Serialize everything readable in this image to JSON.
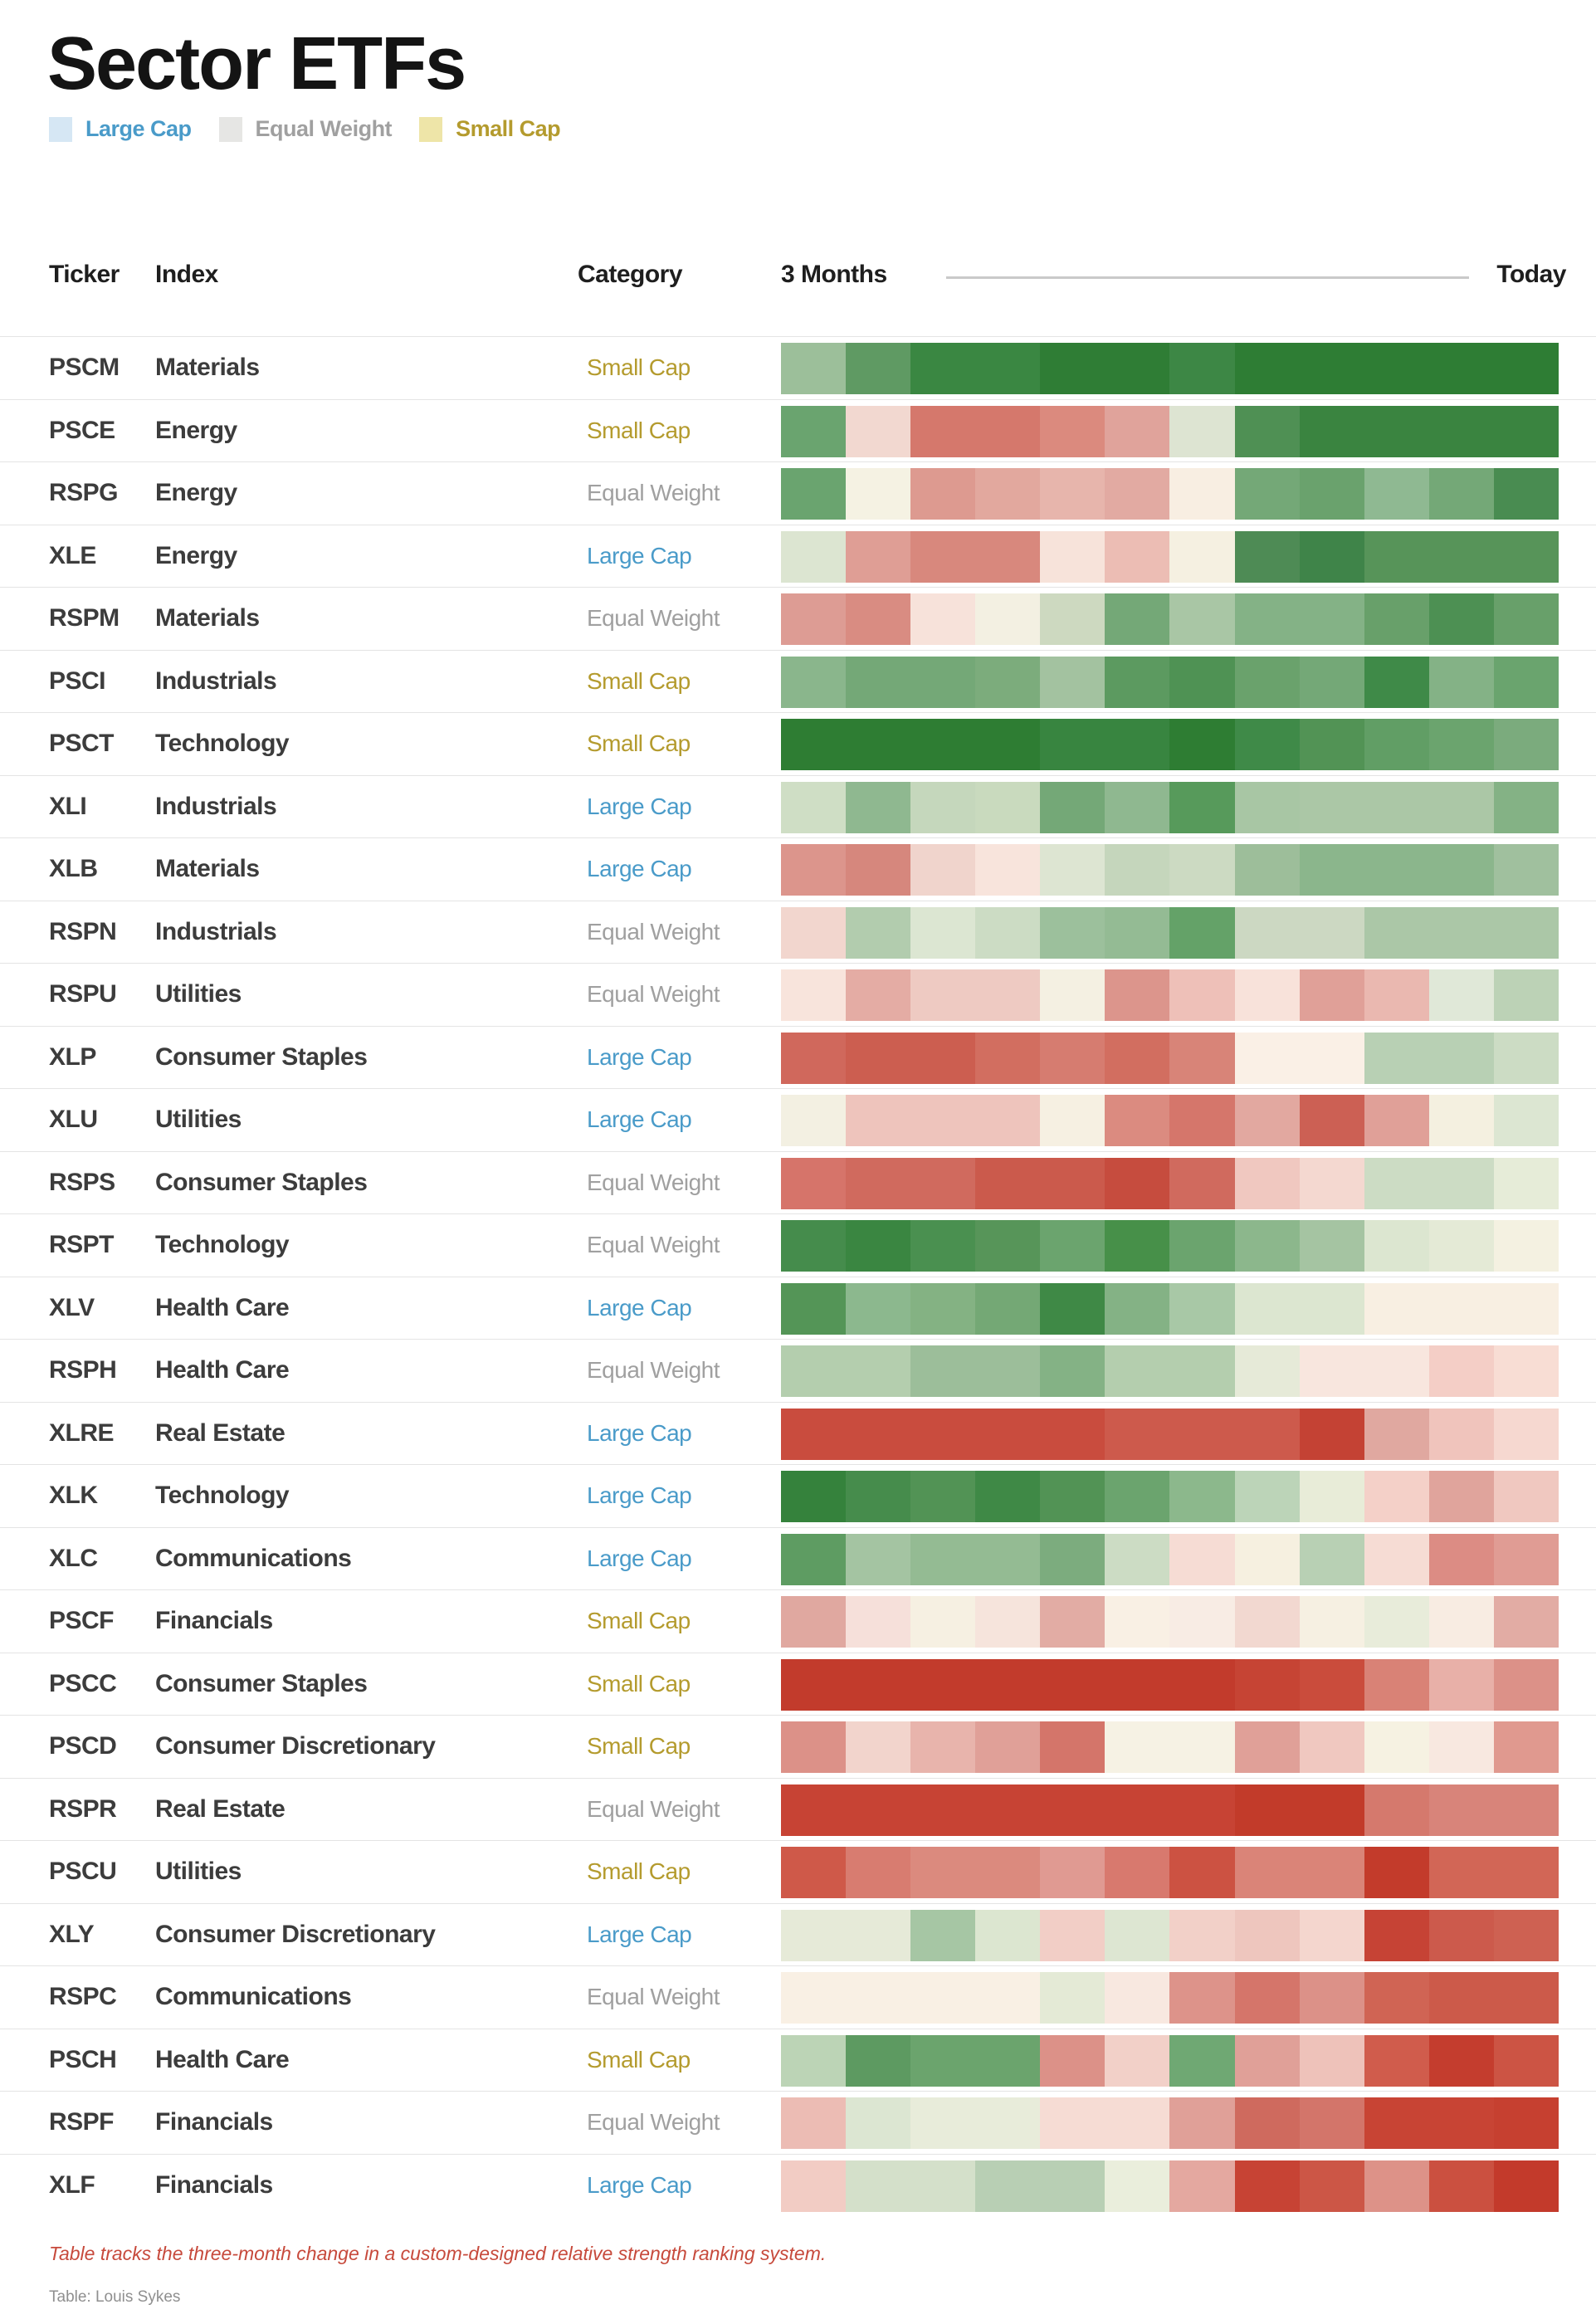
{
  "title": "Sector ETFs",
  "legend": [
    {
      "label": "Large Cap",
      "swatch_color": "#d6e7f4",
      "label_color": "#4a9bc9"
    },
    {
      "label": "Equal Weight",
      "swatch_color": "#e6e6e4",
      "label_color": "#a0a0a0"
    },
    {
      "label": "Small Cap",
      "swatch_color": "#eee5a8",
      "label_color": "#b49b2e"
    }
  ],
  "category_colors": {
    "Large Cap": "#4a9bc9",
    "Equal Weight": "#a0a0a0",
    "Small Cap": "#b49b2e"
  },
  "table": {
    "headers": {
      "ticker": "Ticker",
      "index": "Index",
      "category": "Category",
      "range_start": "3 Months",
      "range_end": "Today"
    }
  },
  "chart_data": {
    "type": "heatmap",
    "title": "Sector ETFs",
    "x_axis": {
      "start_label": "3 Months",
      "end_label": "Today",
      "n_cols": 12
    },
    "rows": [
      {
        "ticker": "PSCM",
        "index": "Materials",
        "category": "Small Cap",
        "cells": [
          "#9cbf9a",
          "#5f9a63",
          "#3a8742",
          "#3a8742",
          "#2f7d35",
          "#2f7d35",
          "#3d8745",
          "#2e7d34",
          "#2e7d34",
          "#2e7d34",
          "#2e7d34",
          "#2e7d34"
        ]
      },
      {
        "ticker": "PSCE",
        "index": "Energy",
        "category": "Small Cap",
        "cells": [
          "#6aa46f",
          "#f2d8d0",
          "#d5786c",
          "#d5786c",
          "#db8a7e",
          "#e0a39b",
          "#dde4d2",
          "#4f9054",
          "#3a8440",
          "#3a8440",
          "#3a8440",
          "#3a8440"
        ]
      },
      {
        "ticker": "RSPG",
        "index": "Energy",
        "category": "Equal Weight",
        "cells": [
          "#6aa46f",
          "#f5f2e3",
          "#dd9a90",
          "#e2a89e",
          "#e7b5ac",
          "#e2aaa2",
          "#f8eee2",
          "#74a877",
          "#6aa26d",
          "#8fb992",
          "#74a877",
          "#498c51"
        ]
      },
      {
        "ticker": "XLE",
        "index": "Energy",
        "category": "Large Cap",
        "cells": [
          "#dce5d1",
          "#df9e95",
          "#d8887d",
          "#d8887d",
          "#f7e3da",
          "#ecbdb4",
          "#f5f0e1",
          "#4e8b55",
          "#3f8449",
          "#579459",
          "#579459",
          "#579459"
        ]
      },
      {
        "ticker": "RSPM",
        "index": "Materials",
        "category": "Equal Weight",
        "cells": [
          "#dd9c94",
          "#d98c82",
          "#f7e2da",
          "#f3f0e2",
          "#cdd9c0",
          "#74a877",
          "#a9c6a5",
          "#84b286",
          "#84b286",
          "#68a06a",
          "#4d9053",
          "#68a06a"
        ]
      },
      {
        "ticker": "PSCI",
        "index": "Industrials",
        "category": "Small Cap",
        "cells": [
          "#8ab68c",
          "#74a877",
          "#74a877",
          "#7cac7c",
          "#a3c2a0",
          "#5c9a60",
          "#4f9254",
          "#6aa26c",
          "#74a877",
          "#3f8a48",
          "#84b286",
          "#6aa46e"
        ]
      },
      {
        "ticker": "PSCT",
        "index": "Technology",
        "category": "Small Cap",
        "cells": [
          "#2e7d33",
          "#2e7d33",
          "#2e7d33",
          "#2e7d33",
          "#388540",
          "#388540",
          "#2e7d33",
          "#3f8a48",
          "#529355",
          "#619e65",
          "#6ba46e",
          "#7bab7d"
        ]
      },
      {
        "ticker": "XLI",
        "index": "Industrials",
        "category": "Large Cap",
        "cells": [
          "#cfdec5",
          "#8fb890",
          "#c5d7bc",
          "#c9dabe",
          "#74a877",
          "#8fb890",
          "#579a5b",
          "#a8c6a4",
          "#abc7a6",
          "#abc7a6",
          "#abc7a6",
          "#84b285"
        ]
      },
      {
        "ticker": "XLB",
        "index": "Materials",
        "category": "Large Cap",
        "cells": [
          "#dc958c",
          "#d6877d",
          "#f0d4cc",
          "#f8e4dc",
          "#dde5d2",
          "#c5d6bc",
          "#ccdac2",
          "#9dbe9a",
          "#8bb68c",
          "#8bb68c",
          "#8bb68c",
          "#a0c09e"
        ]
      },
      {
        "ticker": "RSPN",
        "index": "Industrials",
        "category": "Equal Weight",
        "cells": [
          "#f2d6ce",
          "#b2ccae",
          "#dce6d2",
          "#ccdcc4",
          "#9cc09c",
          "#94bb94",
          "#64a268",
          "#ccd8c2",
          "#ccd8c2",
          "#abc7a7",
          "#abc7a7",
          "#abc7a7"
        ]
      },
      {
        "ticker": "RSPU",
        "index": "Utilities",
        "category": "Equal Weight",
        "cells": [
          "#f8e4dc",
          "#e4aca4",
          "#eecac2",
          "#eecac2",
          "#f4f0e2",
          "#dc958c",
          "#eec0b8",
          "#f8e2da",
          "#e0a098",
          "#eab8b0",
          "#e0e8d8",
          "#bcd2b6"
        ]
      },
      {
        "ticker": "XLP",
        "index": "Consumer Staples",
        "category": "Large Cap",
        "cells": [
          "#d0685c",
          "#cc5e50",
          "#cc5e50",
          "#d26e60",
          "#d67c70",
          "#d26e60",
          "#d88478",
          "#faf0e6",
          "#faf0e6",
          "#b8d0b4",
          "#b8d0b4",
          "#ccdcc4"
        ]
      },
      {
        "ticker": "XLU",
        "index": "Utilities",
        "category": "Large Cap",
        "cells": [
          "#f3f0e2",
          "#eec4bc",
          "#eec4bc",
          "#eec4bc",
          "#f6f0e2",
          "#db8b80",
          "#d5766b",
          "#e2a8a0",
          "#cc6054",
          "#e0a098",
          "#f4f0e0",
          "#dce6d2"
        ]
      },
      {
        "ticker": "RSPS",
        "index": "Consumer Staples",
        "category": "Equal Weight",
        "cells": [
          "#d6746a",
          "#d06a5e",
          "#d06a5e",
          "#cb5a4c",
          "#cb5a4c",
          "#c64c3e",
          "#d06a5e",
          "#f0c8c0",
          "#f4d8d0",
          "#ccdcc4",
          "#ccdcc4",
          "#e6ecd8"
        ]
      },
      {
        "ticker": "RSPT",
        "index": "Technology",
        "category": "Equal Weight",
        "cells": [
          "#458c4c",
          "#3a8641",
          "#4a9050",
          "#579559",
          "#6ba46e",
          "#479049",
          "#6ba46e",
          "#8cb78c",
          "#a5c4a2",
          "#dce6d0",
          "#e4ead6",
          "#f4f1e1"
        ]
      },
      {
        "ticker": "XLV",
        "index": "Health Care",
        "category": "Large Cap",
        "cells": [
          "#549557",
          "#8cb88e",
          "#84b283",
          "#74a875",
          "#3f8946",
          "#84b285",
          "#a8c8a6",
          "#dce6d0",
          "#dce6d0",
          "#f8efe2",
          "#f8efe2",
          "#f8efe2"
        ]
      },
      {
        "ticker": "RSPH",
        "index": "Health Care",
        "category": "Equal Weight",
        "cells": [
          "#b4ceae",
          "#b4ceae",
          "#9cbe9a",
          "#9cbe9a",
          "#84b285",
          "#b4ceae",
          "#b4ceae",
          "#e6ead8",
          "#f8e6de",
          "#f8e6de",
          "#f4cec6",
          "#f8ddd4"
        ]
      },
      {
        "ticker": "XLRE",
        "index": "Real Estate",
        "category": "Large Cap",
        "cells": [
          "#c94c3e",
          "#c94c3e",
          "#c94c3e",
          "#c94c3e",
          "#c94c3e",
          "#cd5a4c",
          "#cd5a4c",
          "#cd5a4c",
          "#c44234",
          "#e0a8a0",
          "#f0c4bc",
          "#f6d8d0"
        ]
      },
      {
        "ticker": "XLK",
        "index": "Technology",
        "category": "Large Cap",
        "cells": [
          "#35823c",
          "#468c4c",
          "#529355",
          "#3f8946",
          "#529355",
          "#6ba46e",
          "#8cb88c",
          "#bcd4b8",
          "#e8ecd8",
          "#f4d0c8",
          "#e0a49c",
          "#f0c8c0"
        ]
      },
      {
        "ticker": "XLC",
        "index": "Communications",
        "category": "Large Cap",
        "cells": [
          "#5e9c62",
          "#a4c4a2",
          "#94bb93",
          "#94bb93",
          "#7cac7e",
          "#ccdcc4",
          "#f6dcd4",
          "#f6f0e0",
          "#b8d0b4",
          "#f6dcd4",
          "#dc8c84",
          "#e09c94"
        ]
      },
      {
        "ticker": "PSCF",
        "index": "Financials",
        "category": "Small Cap",
        "cells": [
          "#e0a8a0",
          "#f6e0da",
          "#f6f0e2",
          "#f6e4dc",
          "#e2aca4",
          "#f9f0e4",
          "#f8ece4",
          "#f2d8d0",
          "#f6f0e2",
          "#e8ecda",
          "#f8ece2",
          "#e2aca4"
        ]
      },
      {
        "ticker": "PSCC",
        "index": "Consumer Staples",
        "category": "Small Cap",
        "cells": [
          "#c23b2c",
          "#c23b2c",
          "#c23b2c",
          "#c23b2c",
          "#c23b2c",
          "#c23b2c",
          "#c23b2c",
          "#c64434",
          "#ca4c3c",
          "#d98276",
          "#e8b0a8",
          "#dc9188"
        ]
      },
      {
        "ticker": "PSCD",
        "index": "Consumer Discretionary",
        "category": "Small Cap",
        "cells": [
          "#dc9188",
          "#f2d4cc",
          "#e8b4ac",
          "#e0a098",
          "#d4756a",
          "#f6f2e4",
          "#f6f2e4",
          "#e0a098",
          "#f0c8c0",
          "#f6f2e2",
          "#f8e8e0",
          "#e0998f"
        ]
      },
      {
        "ticker": "RSPR",
        "index": "Real Estate",
        "category": "Equal Weight",
        "cells": [
          "#c74334",
          "#c74334",
          "#c74334",
          "#c74334",
          "#c74334",
          "#c74334",
          "#c74334",
          "#c23b2a",
          "#c23b2a",
          "#d5796d",
          "#d8847a",
          "#d8847a"
        ]
      },
      {
        "ticker": "PSCU",
        "index": "Utilities",
        "category": "Small Cap",
        "cells": [
          "#cf5949",
          "#d87c70",
          "#db8a7e",
          "#db8a7e",
          "#e09a92",
          "#d8796e",
          "#cc5242",
          "#da8478",
          "#da8478",
          "#c33b2b",
          "#d26656",
          "#d26656"
        ]
      },
      {
        "ticker": "XLY",
        "index": "Consumer Discretionary",
        "category": "Large Cap",
        "cells": [
          "#e6ead8",
          "#e6ead8",
          "#a6c6a4",
          "#dce6d0",
          "#f2cec6",
          "#dde6d2",
          "#f2d0c8",
          "#eec6be",
          "#f4d6ce",
          "#c64335",
          "#cc5a4c",
          "#ce6152"
        ]
      },
      {
        "ticker": "RSPC",
        "index": "Communications",
        "category": "Equal Weight",
        "cells": [
          "#f9f0e4",
          "#f9f0e4",
          "#f9f0e4",
          "#f9f0e4",
          "#e4ead6",
          "#f8e8e0",
          "#dd938a",
          "#d5756a",
          "#dc9188",
          "#d06454",
          "#cc5a4a",
          "#cc5a4a"
        ]
      },
      {
        "ticker": "PSCH",
        "index": "Health Care",
        "category": "Small Cap",
        "cells": [
          "#bcd4b6",
          "#5d9a61",
          "#6ba46d",
          "#6ba46d",
          "#dc9188",
          "#f2d0c8",
          "#6fa873",
          "#e0a098",
          "#eec2ba",
          "#d05c4c",
          "#c43d2e",
          "#cc5444"
        ]
      },
      {
        "ticker": "RSPF",
        "index": "Financials",
        "category": "Equal Weight",
        "cells": [
          "#ecbcb4",
          "#dce6d2",
          "#e8ecda",
          "#e8ecda",
          "#f6dcd4",
          "#f6dcd4",
          "#e0a098",
          "#cf6a5e",
          "#d3756a",
          "#c84434",
          "#c84434",
          "#c64030"
        ]
      },
      {
        "ticker": "XLF",
        "index": "Financials",
        "category": "Large Cap",
        "cells": [
          "#f2ccc4",
          "#d4e0ca",
          "#d4e0ca",
          "#b8cfb4",
          "#b8cfb4",
          "#eaeedc",
          "#e4a8a0",
          "#c74334",
          "#cc5646",
          "#dd9288",
          "#cb5040",
          "#c33a2b"
        ]
      }
    ]
  },
  "footnote": "Table tracks the three-month change in a custom-designed relative strength ranking system.",
  "credit": "Table: Louis Sykes"
}
